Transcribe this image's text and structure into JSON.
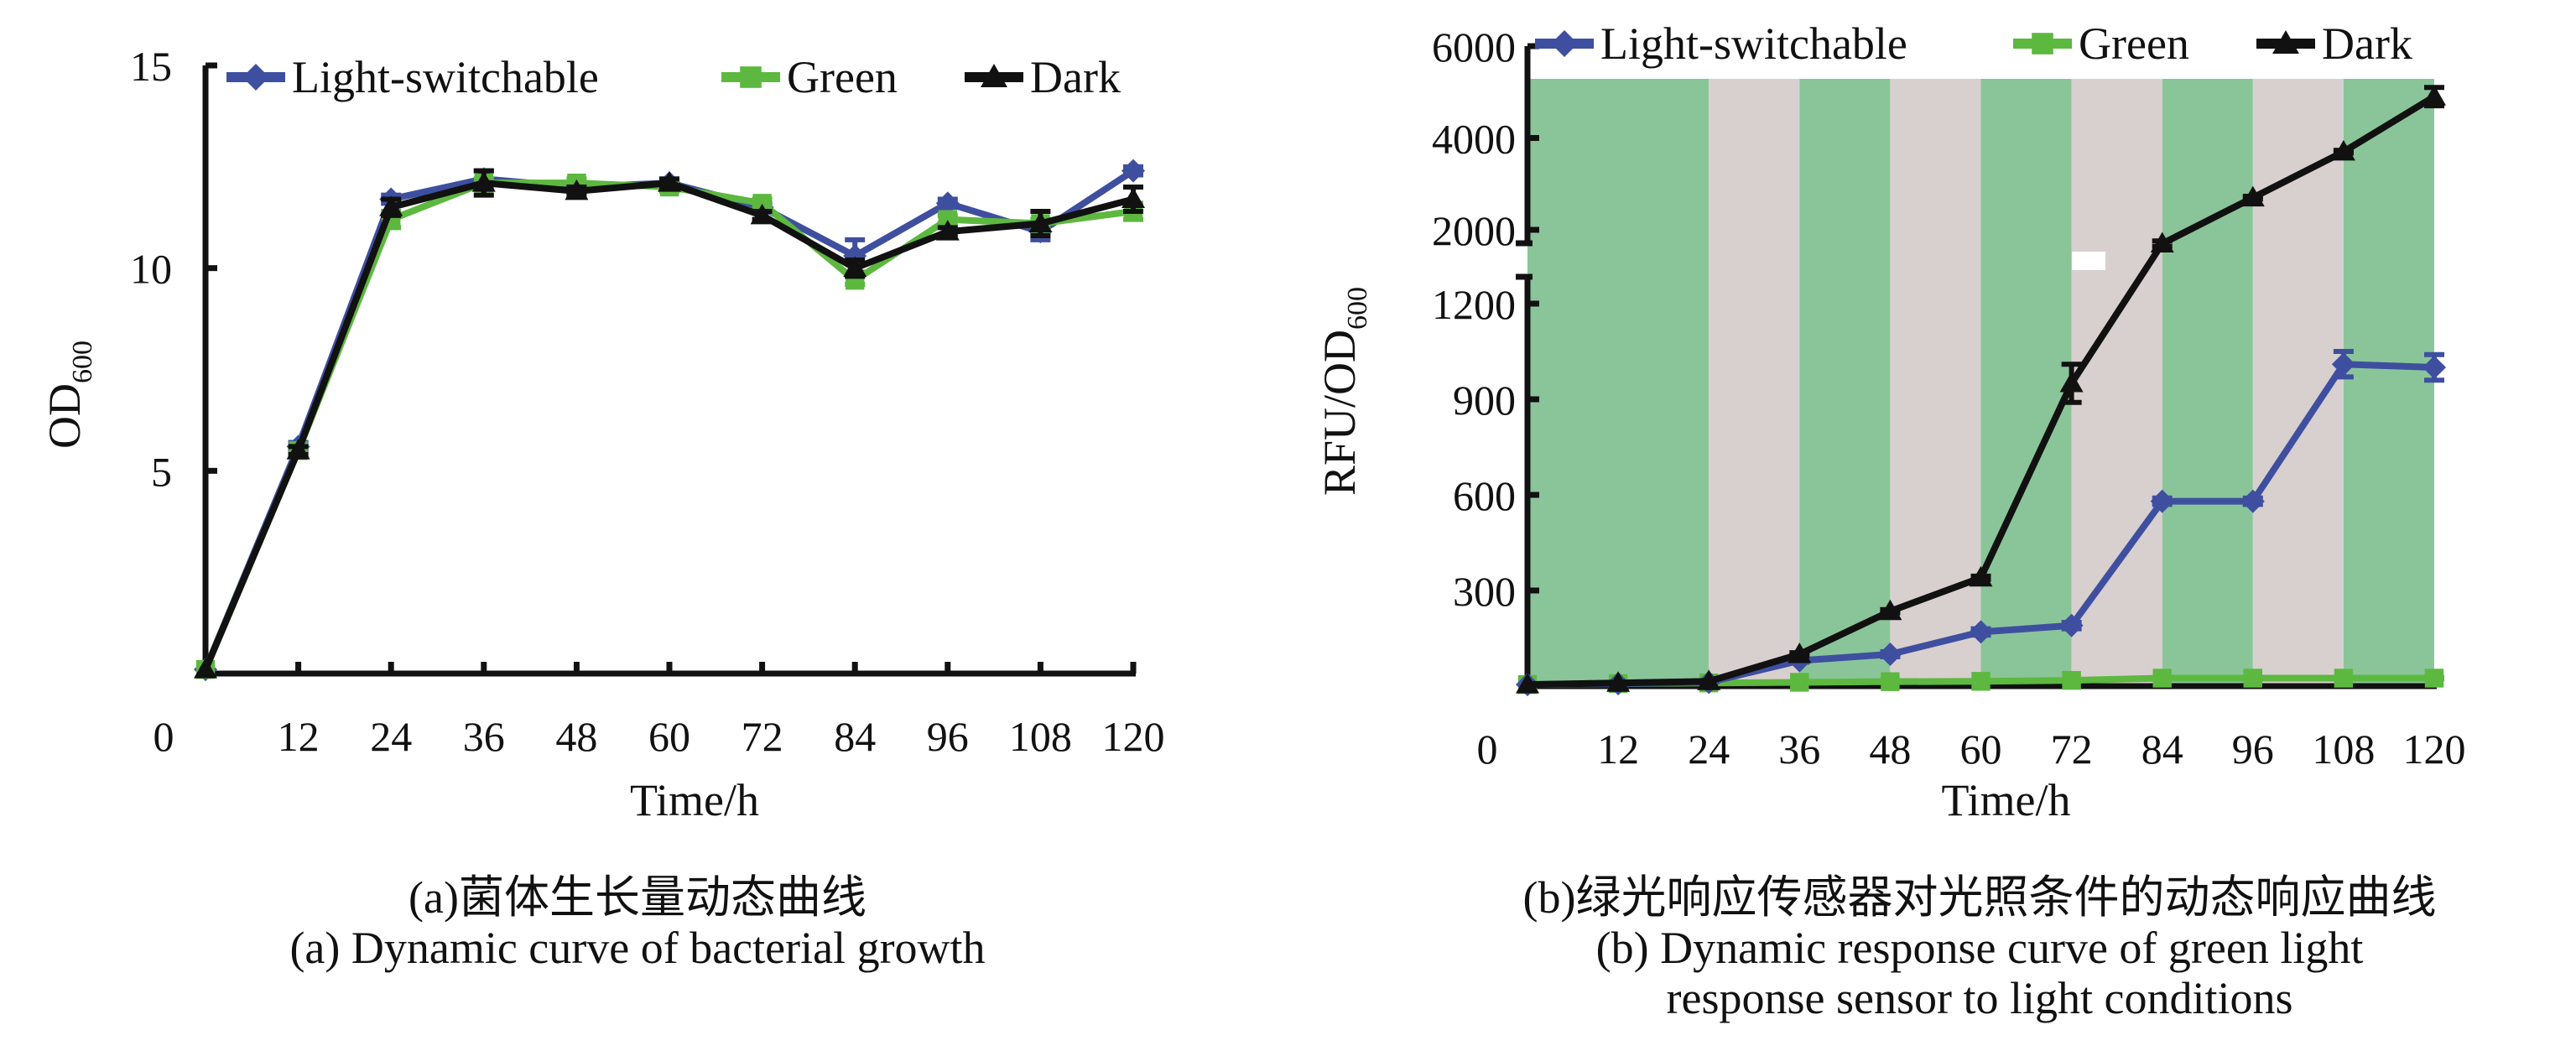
{
  "colors": {
    "light_switchable": "#3F4FA0",
    "green": "#5DB83F",
    "dark": "#111111",
    "band_green": "#8AC59A",
    "band_gray": "#D8D0CF"
  },
  "chart_data": [
    {
      "type": "line",
      "panel": "a",
      "title": "",
      "xlabel": "Time/h",
      "ylabel": "OD",
      "ylabel_sub": "600",
      "x": [
        0,
        12,
        24,
        36,
        48,
        60,
        72,
        84,
        96,
        108,
        120
      ],
      "xticks": [
        "0",
        "12",
        "24",
        "36",
        "48",
        "60",
        "72",
        "84",
        "96",
        "108",
        "120"
      ],
      "yticks": [
        "5",
        "10",
        "15"
      ],
      "ytick_values": [
        5,
        10,
        15
      ],
      "xlim": [
        0,
        120
      ],
      "ylim": [
        0,
        15
      ],
      "legend": "top",
      "series": [
        {
          "name": "Light-switchable",
          "marker": "diamond",
          "values": [
            0.1,
            5.6,
            11.7,
            12.2,
            12.0,
            12.1,
            11.5,
            10.3,
            11.6,
            10.9,
            12.4
          ],
          "errors": [
            0,
            0.1,
            0.1,
            0.2,
            0.1,
            0.1,
            0.1,
            0.4,
            0.1,
            0.2,
            0.1
          ]
        },
        {
          "name": "Green",
          "marker": "square",
          "values": [
            0.1,
            5.5,
            11.2,
            12.1,
            12.1,
            12.0,
            11.6,
            9.7,
            11.2,
            11.1,
            11.4
          ],
          "errors": [
            0,
            0.1,
            0.2,
            0.1,
            0.1,
            0.1,
            0.1,
            0.1,
            0.1,
            0.1,
            0.2
          ]
        },
        {
          "name": "Dark",
          "marker": "triangle",
          "values": [
            0.1,
            5.5,
            11.5,
            12.1,
            11.9,
            12.1,
            11.3,
            10.0,
            10.9,
            11.1,
            11.7
          ],
          "errors": [
            0,
            0.1,
            0.2,
            0.3,
            0.1,
            0.1,
            0.1,
            0.2,
            0.1,
            0.3,
            0.3
          ]
        }
      ]
    },
    {
      "type": "line",
      "panel": "b",
      "title": "",
      "xlabel": "Time/h",
      "ylabel": "RFU/OD",
      "ylabel_sub": "600",
      "x": [
        0,
        12,
        24,
        36,
        48,
        60,
        72,
        84,
        96,
        108,
        120
      ],
      "xticks": [
        "0",
        "12",
        "24",
        "36",
        "48",
        "60",
        "72",
        "84",
        "96",
        "108",
        "120"
      ],
      "yticks": [
        "300",
        "600",
        "900",
        "1200",
        "2000",
        "4000",
        "6000"
      ],
      "ytick_values": [
        300,
        600,
        900,
        1200,
        2000,
        4000,
        6000
      ],
      "y_axis_break": [
        1200,
        2000
      ],
      "xlim": [
        0,
        120
      ],
      "ylim": [
        0,
        6000
      ],
      "legend": "top",
      "background_bands": [
        {
          "from": 0,
          "to": 24,
          "condition": "green"
        },
        {
          "from": 24,
          "to": 36,
          "condition": "dark"
        },
        {
          "from": 36,
          "to": 48,
          "condition": "green"
        },
        {
          "from": 48,
          "to": 60,
          "condition": "dark"
        },
        {
          "from": 60,
          "to": 72,
          "condition": "green"
        },
        {
          "from": 72,
          "to": 84,
          "condition": "dark"
        },
        {
          "from": 84,
          "to": 96,
          "condition": "green"
        },
        {
          "from": 96,
          "to": 108,
          "condition": "dark"
        },
        {
          "from": 108,
          "to": 120,
          "condition": "green"
        }
      ],
      "series": [
        {
          "name": "Light-switchable",
          "marker": "diamond",
          "values": [
            5,
            8,
            12,
            80,
            100,
            170,
            190,
            580,
            580,
            1010,
            1000
          ],
          "errors": [
            0,
            0,
            0,
            5,
            8,
            10,
            10,
            10,
            10,
            40,
            40
          ]
        },
        {
          "name": "Green",
          "marker": "square",
          "values": [
            5,
            8,
            10,
            12,
            14,
            15,
            18,
            25,
            25,
            25,
            25
          ],
          "errors": [
            0,
            0,
            0,
            2,
            2,
            2,
            2,
            2,
            2,
            2,
            2
          ]
        },
        {
          "name": "Dark",
          "marker": "triangle",
          "values": [
            5,
            10,
            15,
            100,
            235,
            340,
            950,
            1850,
            2700,
            3700,
            4900
          ],
          "errors": [
            0,
            0,
            0,
            5,
            5,
            5,
            60,
            30,
            30,
            30,
            200
          ]
        }
      ]
    }
  ],
  "captions": {
    "a_cn": "(a)菌体生长量动态曲线",
    "a_en": "(a) Dynamic curve of bacterial growth",
    "b_cn": "(b)绿光响应传感器对光照条件的动态响应曲线",
    "b_en_line1": "(b) Dynamic response curve of green light",
    "b_en_line2": "response sensor to light conditions"
  }
}
